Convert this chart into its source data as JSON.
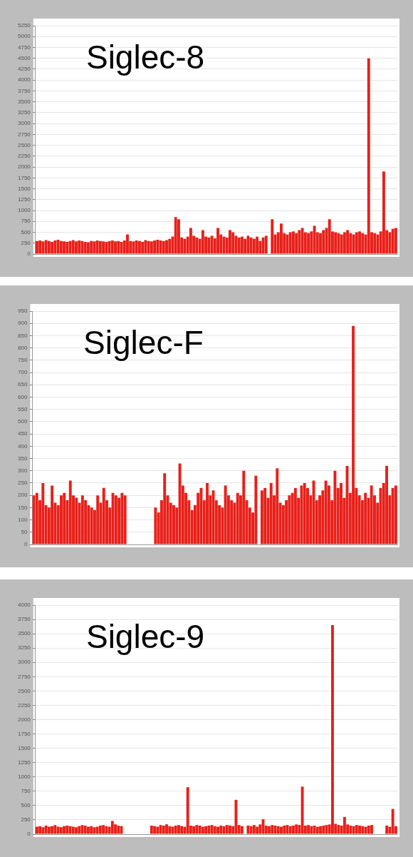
{
  "chart_data": [
    {
      "type": "bar",
      "title": "Siglec-8",
      "color": "#e8201a",
      "grid": "y",
      "tick_labels": "y",
      "ylim": [
        0,
        5250
      ],
      "yticks": [
        0,
        250,
        500,
        750,
        1000,
        1250,
        1500,
        1750,
        2000,
        2250,
        2500,
        2750,
        3000,
        3250,
        3500,
        3750,
        4000,
        4250,
        4500,
        4750,
        5000,
        5250
      ],
      "categories": [
        null,
        null,
        null,
        null,
        null,
        null,
        null,
        null,
        null,
        null,
        null,
        null,
        null,
        null,
        null,
        null,
        null,
        null,
        null,
        null,
        null,
        null,
        null,
        null,
        null,
        null,
        null,
        null,
        null,
        null,
        null,
        null,
        null,
        null,
        null,
        null,
        null,
        null,
        null,
        null,
        null,
        null,
        null,
        null,
        null,
        null,
        null,
        null,
        null,
        null,
        null,
        null,
        null,
        null,
        null,
        null,
        null,
        null,
        null,
        null,
        null,
        null,
        null,
        null,
        null,
        null,
        null,
        null,
        null,
        null,
        null,
        null,
        null,
        null,
        null,
        null,
        null,
        null,
        null,
        null,
        null,
        null,
        null,
        null,
        null,
        null,
        null,
        null,
        null,
        null,
        null,
        null,
        null,
        null,
        null,
        null,
        null,
        null,
        null,
        null,
        null,
        null,
        null,
        null,
        null,
        null,
        null,
        null,
        null,
        null,
        null,
        null,
        null,
        null,
        null,
        null,
        null,
        null,
        null,
        null
      ],
      "values": [
        300,
        310,
        290,
        320,
        300,
        280,
        310,
        330,
        300,
        290,
        280,
        300,
        320,
        290,
        310,
        300,
        280,
        270,
        300,
        290,
        310,
        300,
        290,
        280,
        300,
        310,
        290,
        300,
        280,
        310,
        450,
        300,
        290,
        310,
        300,
        280,
        320,
        300,
        290,
        310,
        330,
        310,
        300,
        320,
        350,
        400,
        850,
        800,
        380,
        350,
        400,
        600,
        420,
        380,
        350,
        550,
        400,
        380,
        420,
        360,
        600,
        450,
        400,
        380,
        550,
        500,
        420,
        380,
        400,
        350,
        420,
        380,
        350,
        400,
        300,
        380,
        420,
        null,
        800,
        450,
        500,
        700,
        480,
        450,
        500,
        520,
        480,
        550,
        600,
        500,
        480,
        520,
        650,
        500,
        480,
        550,
        600,
        800,
        520,
        500,
        480,
        450,
        500,
        550,
        480,
        450,
        500,
        520,
        480,
        450,
        4500,
        500,
        480,
        450,
        520,
        1900,
        550,
        500,
        580,
        600
      ]
    },
    {
      "type": "bar",
      "title": "Siglec-F",
      "color": "#e8201a",
      "grid": "y",
      "tick_labels": "y",
      "ylim": [
        0,
        950
      ],
      "yticks": [
        0,
        50,
        100,
        150,
        200,
        250,
        300,
        350,
        400,
        450,
        500,
        550,
        600,
        650,
        700,
        750,
        800,
        850,
        900,
        950
      ],
      "categories": [
        null,
        null,
        null,
        null,
        null,
        null,
        null,
        null,
        null,
        null,
        null,
        null,
        null,
        null,
        null,
        null,
        null,
        null,
        null,
        null,
        null,
        null,
        null,
        null,
        null,
        null,
        null,
        null,
        null,
        null,
        null,
        null,
        null,
        null,
        null,
        null,
        null,
        null,
        null,
        null,
        null,
        null,
        null,
        null,
        null,
        null,
        null,
        null,
        null,
        null,
        null,
        null,
        null,
        null,
        null,
        null,
        null,
        null,
        null,
        null,
        null,
        null,
        null,
        null,
        null,
        null,
        null,
        null,
        null,
        null,
        null,
        null,
        null,
        null,
        null,
        null,
        null,
        null,
        null,
        null,
        null,
        null,
        null,
        null,
        null,
        null,
        null,
        null,
        null,
        null,
        null,
        null,
        null,
        null,
        null,
        null,
        null,
        null,
        null,
        null,
        null,
        null,
        null,
        null,
        null,
        null,
        null,
        null,
        null,
        null,
        null,
        null,
        null,
        null,
        null,
        null,
        null,
        null,
        null,
        null
      ],
      "values": [
        200,
        210,
        180,
        250,
        160,
        150,
        240,
        170,
        160,
        200,
        210,
        180,
        260,
        200,
        190,
        170,
        200,
        180,
        160,
        150,
        140,
        200,
        170,
        230,
        180,
        150,
        210,
        200,
        190,
        210,
        200,
        null,
        null,
        null,
        null,
        null,
        null,
        null,
        null,
        null,
        150,
        130,
        180,
        290,
        200,
        170,
        160,
        150,
        330,
        240,
        210,
        180,
        140,
        160,
        210,
        230,
        180,
        250,
        200,
        220,
        180,
        160,
        150,
        240,
        200,
        180,
        170,
        210,
        200,
        300,
        180,
        150,
        130,
        280,
        null,
        220,
        230,
        190,
        250,
        200,
        310,
        170,
        160,
        180,
        200,
        210,
        230,
        190,
        240,
        250,
        230,
        200,
        260,
        180,
        200,
        220,
        260,
        240,
        180,
        300,
        230,
        250,
        190,
        320,
        210,
        890,
        230,
        200,
        180,
        210,
        190,
        240,
        200,
        170,
        230,
        250,
        320,
        200,
        230,
        240
      ]
    },
    {
      "type": "bar",
      "title": "Siglec-9",
      "color": "#e8201a",
      "grid": "y",
      "tick_labels": "y",
      "ylim": [
        0,
        4000
      ],
      "yticks": [
        0,
        250,
        500,
        750,
        1000,
        1250,
        1500,
        1750,
        2000,
        2250,
        2500,
        2750,
        3000,
        3250,
        3500,
        3750,
        4000
      ],
      "categories": [
        null,
        null,
        null,
        null,
        null,
        null,
        null,
        null,
        null,
        null,
        null,
        null,
        null,
        null,
        null,
        null,
        null,
        null,
        null,
        null,
        null,
        null,
        null,
        null,
        null,
        null,
        null,
        null,
        null,
        null,
        null,
        null,
        null,
        null,
        null,
        null,
        null,
        null,
        null,
        null,
        null,
        null,
        null,
        null,
        null,
        null,
        null,
        null,
        null,
        null,
        null,
        null,
        null,
        null,
        null,
        null,
        null,
        null,
        null,
        null,
        null,
        null,
        null,
        null,
        null,
        null,
        null,
        null,
        null,
        null,
        null,
        null,
        null,
        null,
        null,
        null,
        null,
        null,
        null,
        null,
        null,
        null,
        null,
        null,
        null,
        null,
        null,
        null,
        null,
        null,
        null,
        null,
        null,
        null,
        null,
        null,
        null,
        null,
        null,
        null,
        null,
        null,
        null,
        null,
        null,
        null,
        null,
        null,
        null,
        null,
        null,
        null,
        null,
        null,
        null,
        null,
        null,
        null,
        null,
        null
      ],
      "values": [
        130,
        140,
        120,
        150,
        130,
        140,
        160,
        130,
        120,
        140,
        150,
        140,
        130,
        120,
        140,
        160,
        150,
        130,
        140,
        120,
        130,
        150,
        160,
        140,
        130,
        230,
        170,
        150,
        140,
        null,
        null,
        null,
        null,
        null,
        null,
        null,
        null,
        null,
        150,
        140,
        130,
        160,
        150,
        170,
        140,
        130,
        150,
        160,
        140,
        130,
        820,
        150,
        140,
        160,
        150,
        130,
        140,
        150,
        160,
        140,
        130,
        150,
        140,
        160,
        150,
        140,
        600,
        160,
        140,
        null,
        150,
        140,
        160,
        130,
        170,
        260,
        150,
        140,
        160,
        150,
        140,
        130,
        150,
        160,
        140,
        150,
        170,
        160,
        830,
        150,
        160,
        140,
        150,
        130,
        140,
        150,
        160,
        170,
        3650,
        180,
        160,
        150,
        300,
        170,
        150,
        140,
        160,
        150,
        140,
        130,
        150,
        160,
        null,
        null,
        null,
        null,
        150,
        130,
        440,
        140
      ]
    }
  ]
}
